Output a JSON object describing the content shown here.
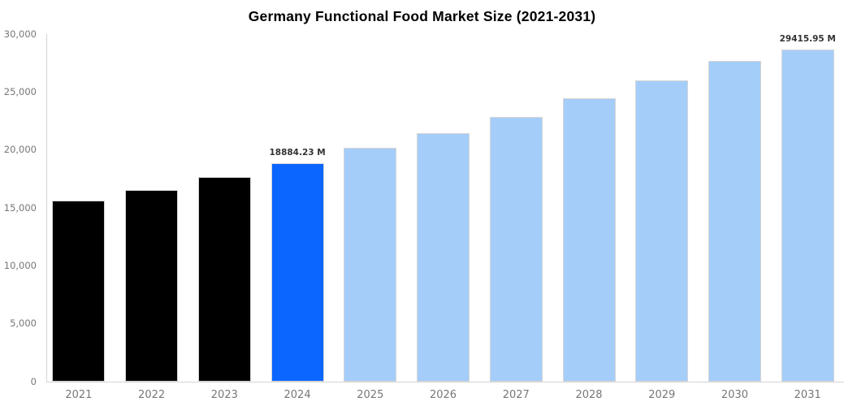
{
  "page": {
    "background": "#ffffff"
  },
  "chart_data": {
    "type": "bar",
    "title": "Germany Functional Food Market Size (2021-2031)",
    "categories": [
      "2021",
      "2022",
      "2023",
      "2024",
      "2025",
      "2026",
      "2027",
      "2028",
      "2029",
      "2030",
      "2031"
    ],
    "values": [
      15600,
      16560,
      17650,
      18884.23,
      20160,
      21480,
      22880,
      24440,
      26010,
      27715,
      29415.95
    ],
    "unit": "M",
    "data_labels": {
      "2024": "18884.23 M",
      "2031": "29415.95 M"
    },
    "bar_color_keys": [
      "historical",
      "historical",
      "historical",
      "current",
      "forecast",
      "forecast",
      "forecast",
      "forecast",
      "forecast",
      "forecast",
      "forecast"
    ],
    "colors": {
      "historical": "#000000",
      "current": "#0A66FF",
      "forecast": "#A4CDFA",
      "axis": "#d4d4d4",
      "tick_label": "#777777",
      "data_label": "#333333",
      "title": "#000000",
      "bar_edge": "#d6d6d6"
    },
    "ylim": [
      0,
      30000
    ],
    "yticks": [
      {
        "value": 0,
        "label": "0"
      },
      {
        "value": 5000,
        "label": "5,000"
      },
      {
        "value": 10000,
        "label": "10,000"
      },
      {
        "value": 15000,
        "label": "15,000"
      },
      {
        "value": 20000,
        "label": "20,000"
      },
      {
        "value": 25000,
        "label": "25,000"
      },
      {
        "value": 30000,
        "label": "30,000"
      }
    ],
    "xlabel": "",
    "ylabel": "",
    "grid": false,
    "legend": null
  }
}
